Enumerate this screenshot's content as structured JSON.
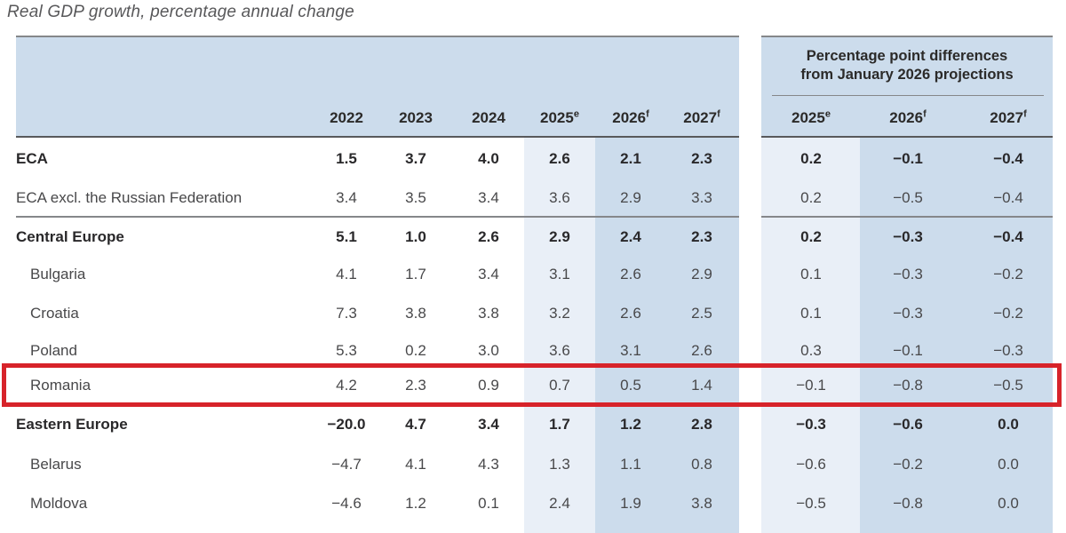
{
  "title": "Real GDP growth, percentage annual change",
  "table": {
    "year_columns": [
      {
        "label": "2022",
        "sup": ""
      },
      {
        "label": "2023",
        "sup": ""
      },
      {
        "label": "2024",
        "sup": ""
      },
      {
        "label": "2025",
        "sup": "e"
      },
      {
        "label": "2026",
        "sup": "f"
      },
      {
        "label": "2027",
        "sup": "f"
      }
    ],
    "diff_header": {
      "line1": "Percentage point differences",
      "line2": "from January 2026 projections"
    },
    "diff_columns": [
      {
        "label": "2025",
        "sup": "e"
      },
      {
        "label": "2026",
        "sup": "f"
      },
      {
        "label": "2027",
        "sup": "f"
      }
    ],
    "rows": [
      {
        "label": "ECA",
        "bold": true,
        "indent": false,
        "highlight": false,
        "section_line_above": false,
        "values": [
          "1.5",
          "3.7",
          "4.0",
          "2.6",
          "2.1",
          "2.3"
        ],
        "diffs": [
          "0.2",
          "−0.1",
          "−0.4"
        ]
      },
      {
        "label": "ECA excl. the Russian Federation",
        "bold": false,
        "indent": false,
        "highlight": false,
        "section_line_above": false,
        "values": [
          "3.4",
          "3.5",
          "3.4",
          "3.6",
          "2.9",
          "3.3"
        ],
        "diffs": [
          "0.2",
          "−0.5",
          "−0.4"
        ]
      },
      {
        "label": "Central Europe",
        "bold": true,
        "indent": false,
        "highlight": false,
        "section_line_above": true,
        "values": [
          "5.1",
          "1.0",
          "2.6",
          "2.9",
          "2.4",
          "2.3"
        ],
        "diffs": [
          "0.2",
          "−0.3",
          "−0.4"
        ]
      },
      {
        "label": "Bulgaria",
        "bold": false,
        "indent": true,
        "highlight": false,
        "section_line_above": false,
        "values": [
          "4.1",
          "1.7",
          "3.4",
          "3.1",
          "2.6",
          "2.9"
        ],
        "diffs": [
          "0.1",
          "−0.3",
          "−0.2"
        ]
      },
      {
        "label": "Croatia",
        "bold": false,
        "indent": true,
        "highlight": false,
        "section_line_above": false,
        "values": [
          "7.3",
          "3.8",
          "3.8",
          "3.2",
          "2.6",
          "2.5"
        ],
        "diffs": [
          "0.1",
          "−0.3",
          "−0.2"
        ]
      },
      {
        "label": "Poland",
        "bold": false,
        "indent": true,
        "highlight": false,
        "section_line_above": false,
        "values": [
          "5.3",
          "0.2",
          "3.0",
          "3.6",
          "3.1",
          "2.6"
        ],
        "diffs": [
          "0.3",
          "−0.1",
          "−0.3"
        ]
      },
      {
        "label": "Romania",
        "bold": false,
        "indent": true,
        "highlight": true,
        "section_line_above": false,
        "values": [
          "4.2",
          "2.3",
          "0.9",
          "0.7",
          "0.5",
          "1.4"
        ],
        "diffs": [
          "−0.1",
          "−0.8",
          "−0.5"
        ]
      },
      {
        "label": "Eastern Europe",
        "bold": true,
        "indent": false,
        "highlight": false,
        "section_line_above": true,
        "values": [
          "−20.0",
          "4.7",
          "3.4",
          "1.7",
          "1.2",
          "2.8"
        ],
        "diffs": [
          "−0.3",
          "−0.6",
          "0.0"
        ]
      },
      {
        "label": "Belarus",
        "bold": false,
        "indent": true,
        "highlight": false,
        "section_line_above": false,
        "values": [
          "−4.7",
          "4.1",
          "4.3",
          "1.3",
          "1.1",
          "0.8"
        ],
        "diffs": [
          "−0.6",
          "−0.2",
          "0.0"
        ]
      },
      {
        "label": "Moldova",
        "bold": false,
        "indent": true,
        "highlight": false,
        "section_line_above": false,
        "values": [
          "−4.6",
          "1.2",
          "0.1",
          "2.4",
          "1.9",
          "3.8"
        ],
        "diffs": [
          "−0.5",
          "−0.8",
          "0.0"
        ]
      }
    ]
  },
  "colors": {
    "header_blue": "#ccdcec",
    "light_band": "#e9eff7",
    "dark_band": "#ccdcec",
    "heavy_line": "#58595b",
    "thin_line": "#85878a",
    "highlight_red": "#d7232a",
    "text_regular": "#48484a",
    "text_bold": "#29282a"
  }
}
